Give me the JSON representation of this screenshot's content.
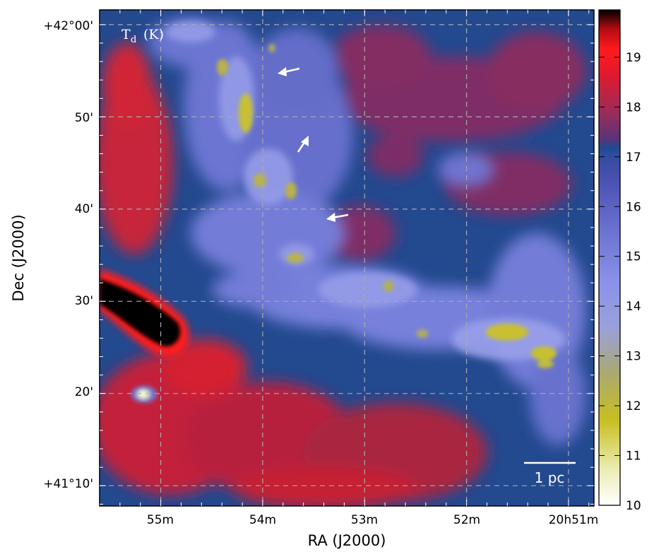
{
  "chart_data": {
    "type": "heatmap",
    "title": "",
    "panel_label": "T",
    "panel_label_sub": "d",
    "panel_label_unit": "(K)",
    "xlabel": "RA (J2000)",
    "ylabel": "Dec (J2000)",
    "x_tick_labels": [
      "55m",
      "54m",
      "53m",
      "52m",
      "20h51m"
    ],
    "y_tick_labels": [
      "+41°10'",
      "20'",
      "30'",
      "40'",
      "50'",
      "+42°00'"
    ],
    "x_ticks_minutes": [
      55,
      54,
      53,
      52,
      51
    ],
    "y_ticks_arcmin_offset": [
      10,
      20,
      30,
      40,
      50,
      60
    ],
    "xlim_minutes": [
      55.6,
      50.75
    ],
    "ylim_arcmin_offset": [
      7.8,
      61.6
    ],
    "grid": true,
    "colorbar": {
      "label": "Td (K)",
      "ticks": [
        10,
        11,
        12,
        13,
        14,
        15,
        16,
        17,
        18,
        19
      ],
      "range": [
        10,
        19.95
      ],
      "colors": [
        "#ffffff",
        "#e6e6a8",
        "#c8c020",
        "#aaaa66",
        "#9a9ed8",
        "#8088e8",
        "#5c62c8",
        "#2a48a0",
        "#8a2e62",
        "#d8202a",
        "#ff1418",
        "#c40c10",
        "#000000"
      ]
    },
    "scale_bar": {
      "label": "1 pc"
    },
    "annotations": [
      {
        "type": "arrow",
        "label": ""
      },
      {
        "type": "arrow",
        "label": ""
      },
      {
        "type": "arrow",
        "label": ""
      }
    ]
  }
}
